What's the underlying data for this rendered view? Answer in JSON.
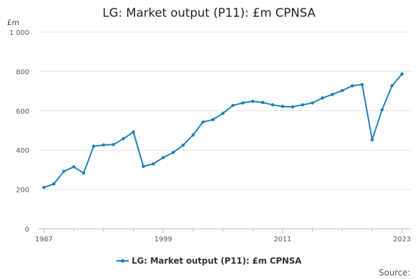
{
  "chart_data": {
    "type": "line",
    "title": "LG: Market output (P11): £m CPNSA",
    "ylabel": "£m",
    "xlabel": "",
    "ylim": [
      0,
      1000
    ],
    "xlim": [
      1987,
      2023
    ],
    "y_ticks": [
      0,
      200,
      400,
      600,
      800,
      1000
    ],
    "y_tick_labels": [
      "0",
      "200",
      "400",
      "600",
      "800",
      "1 000"
    ],
    "x_ticks": [
      1987,
      1999,
      2011,
      2023
    ],
    "x_tick_labels": [
      "1987",
      "1999",
      "2011",
      "2023"
    ],
    "grid": true,
    "legend_position": "bottom",
    "series": [
      {
        "name": "LG: Market output (P11): £m CPNSA",
        "color": "#1f7fb6",
        "x": [
          1987,
          1988,
          1989,
          1990,
          1991,
          1992,
          1993,
          1994,
          1995,
          1996,
          1997,
          1998,
          1999,
          2000,
          2001,
          2002,
          2003,
          2004,
          2005,
          2006,
          2007,
          2008,
          2009,
          2010,
          2011,
          2012,
          2013,
          2014,
          2015,
          2016,
          2017,
          2018,
          2019,
          2020,
          2021,
          2022,
          2023
        ],
        "values": [
          210,
          228,
          292,
          315,
          283,
          420,
          426,
          428,
          458,
          492,
          317,
          330,
          362,
          388,
          425,
          477,
          543,
          555,
          587,
          627,
          640,
          648,
          642,
          630,
          622,
          620,
          630,
          640,
          665,
          683,
          703,
          727,
          733,
          452,
          605,
          727,
          787
        ]
      }
    ]
  },
  "source_label": "Source:"
}
